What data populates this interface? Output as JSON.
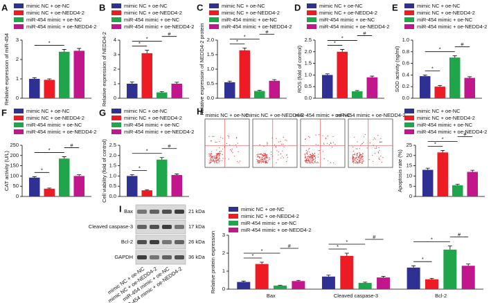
{
  "chart_data": [
    {
      "type": "bar",
      "panel": "A",
      "y_label": "Relative expression of miR-454",
      "ylim": [
        0,
        3
      ],
      "yticks": [
        0,
        1,
        2,
        3
      ],
      "series": [
        {
          "name": "mimic NC + oe-NC",
          "color": "#2e3192",
          "values": [
            1.0
          ],
          "errors": [
            0.06
          ]
        },
        {
          "name": "mimic NC + oe-NEDD4-2",
          "color": "#ed1c24",
          "values": [
            0.95
          ],
          "errors": [
            0.05
          ]
        },
        {
          "name": "miR-454 mimic + oe-NC",
          "color": "#1fa64a",
          "values": [
            2.4
          ],
          "errors": [
            0.12
          ]
        },
        {
          "name": "miR-454 mimic + oe-NEDD4-2",
          "color": "#c2178c",
          "values": [
            2.45
          ],
          "errors": [
            0.12
          ]
        }
      ],
      "comparisons": [
        {
          "label": "*",
          "between": [
            0,
            2
          ]
        }
      ]
    },
    {
      "type": "bar",
      "panel": "B",
      "y_label": "Relative expression of NEDD4-2",
      "ylim": [
        0,
        4
      ],
      "yticks": [
        0,
        1,
        2,
        3,
        4
      ],
      "series": [
        {
          "name": "mimic NC + oe-NC",
          "color": "#2e3192",
          "values": [
            1.0
          ],
          "errors": [
            0.12
          ]
        },
        {
          "name": "mimic NC + oe-NEDD4-2",
          "color": "#ed1c24",
          "values": [
            3.1
          ],
          "errors": [
            0.2
          ]
        },
        {
          "name": "miR-454 mimic + oe-NC",
          "color": "#1fa64a",
          "values": [
            0.4
          ],
          "errors": [
            0.06
          ]
        },
        {
          "name": "miR-454 mimic + oe-NEDD4-2",
          "color": "#c2178c",
          "values": [
            1.0
          ],
          "errors": [
            0.1
          ]
        }
      ],
      "comparisons": [
        {
          "label": "*",
          "between": [
            0,
            1
          ]
        },
        {
          "label": "*",
          "between": [
            0,
            2
          ]
        },
        {
          "label": "#",
          "between": [
            2,
            3
          ]
        }
      ]
    },
    {
      "type": "bar",
      "panel": "C",
      "y_label": "Relative expression of NEDD4-2 protein",
      "ylim": [
        0,
        2
      ],
      "yticks": [
        {
          "value": 0,
          "label": "0.0"
        },
        {
          "value": 0.5,
          "label": "0.5"
        },
        {
          "value": 1,
          "label": "1.0"
        },
        {
          "value": 1.5,
          "label": "1.5"
        },
        {
          "value": 2,
          "label": "2.0"
        }
      ],
      "series": [
        {
          "name": "mimic NC + oe-NC",
          "color": "#2e3192",
          "values": [
            0.55
          ],
          "errors": [
            0.04
          ]
        },
        {
          "name": "mimic NC + oe-NEDD4-2",
          "color": "#ed1c24",
          "values": [
            1.65
          ],
          "errors": [
            0.08
          ]
        },
        {
          "name": "miR-454 mimic + oe-NC",
          "color": "#1fa64a",
          "values": [
            0.25
          ],
          "errors": [
            0.02
          ]
        },
        {
          "name": "miR-454 mimic + oe-NEDD4-2",
          "color": "#c2178c",
          "values": [
            0.6
          ],
          "errors": [
            0.04
          ]
        }
      ],
      "comparisons": [
        {
          "label": "*",
          "between": [
            0,
            1
          ]
        },
        {
          "label": "*",
          "between": [
            0,
            2
          ]
        },
        {
          "label": "#",
          "between": [
            2,
            3
          ]
        }
      ]
    },
    {
      "type": "bar",
      "panel": "D",
      "y_label": "ROS (fold of control)",
      "ylim": [
        0,
        2.5
      ],
      "yticks": [
        {
          "value": 0,
          "label": "0.0"
        },
        {
          "value": 0.5,
          "label": "0.5"
        },
        {
          "value": 1,
          "label": "1.0"
        },
        {
          "value": 1.5,
          "label": "1.5"
        },
        {
          "value": 2,
          "label": "2.0"
        },
        {
          "value": 2.5,
          "label": "2.5"
        }
      ],
      "series": [
        {
          "name": "mimic NC + oe-NC",
          "color": "#2e3192",
          "values": [
            1.0
          ],
          "errors": [
            0.05
          ]
        },
        {
          "name": "mimic NC + oe-NEDD4-2",
          "color": "#ed1c24",
          "values": [
            2.0
          ],
          "errors": [
            0.1
          ]
        },
        {
          "name": "miR-454 mimic + oe-NC",
          "color": "#1fa64a",
          "values": [
            0.3
          ],
          "errors": [
            0.03
          ]
        },
        {
          "name": "miR-454 mimic + oe-NEDD4-2",
          "color": "#c2178c",
          "values": [
            0.9
          ],
          "errors": [
            0.05
          ]
        }
      ],
      "comparisons": [
        {
          "label": "*",
          "between": [
            0,
            1
          ]
        },
        {
          "label": "*",
          "between": [
            0,
            2
          ]
        },
        {
          "label": "#",
          "between": [
            2,
            3
          ]
        }
      ]
    },
    {
      "type": "bar",
      "panel": "E",
      "y_label": "SOD activity (ng/ml)",
      "ylim": [
        0,
        1
      ],
      "yticks": [
        {
          "value": 0,
          "label": "0.0"
        },
        {
          "value": 0.2,
          "label": "0.2"
        },
        {
          "value": 0.4,
          "label": "0.4"
        },
        {
          "value": 0.6,
          "label": "0.6"
        },
        {
          "value": 0.8,
          "label": "0.8"
        },
        {
          "value": 1,
          "label": "1.0"
        }
      ],
      "series": [
        {
          "name": "mimic NC + oe-NC",
          "color": "#2e3192",
          "values": [
            0.38
          ],
          "errors": [
            0.02
          ]
        },
        {
          "name": "mimic NC + oe-NEDD4-2",
          "color": "#ed1c24",
          "values": [
            0.2
          ],
          "errors": [
            0.02
          ]
        },
        {
          "name": "miR-454 mimic + oe-NC",
          "color": "#1fa64a",
          "values": [
            0.7
          ],
          "errors": [
            0.03
          ]
        },
        {
          "name": "miR-454 mimic + oe-NEDD4-2",
          "color": "#c2178c",
          "values": [
            0.35
          ],
          "errors": [
            0.02
          ]
        }
      ],
      "comparisons": [
        {
          "label": "*",
          "between": [
            0,
            1
          ]
        },
        {
          "label": "*",
          "between": [
            0,
            2
          ]
        },
        {
          "label": "#",
          "between": [
            2,
            3
          ]
        }
      ]
    },
    {
      "type": "bar",
      "panel": "F",
      "y_label": "CAT activity (U/L)",
      "ylim": [
        0,
        250
      ],
      "yticks": [
        0,
        50,
        100,
        150,
        200,
        250
      ],
      "series": [
        {
          "name": "mimic NC + oe-NC",
          "color": "#2e3192",
          "values": [
            92
          ],
          "errors": [
            5
          ]
        },
        {
          "name": "mimic NC + oe-NEDD4-2",
          "color": "#ed1c24",
          "values": [
            38
          ],
          "errors": [
            3
          ]
        },
        {
          "name": "miR-454 mimic + oe-NC",
          "color": "#1fa64a",
          "values": [
            185
          ],
          "errors": [
            9
          ]
        },
        {
          "name": "miR-454 mimic + oe-NEDD4-2",
          "color": "#c2178c",
          "values": [
            100
          ],
          "errors": [
            6
          ]
        }
      ],
      "comparisons": [
        {
          "label": "*",
          "between": [
            0,
            1
          ]
        },
        {
          "label": "*",
          "between": [
            0,
            2
          ]
        },
        {
          "label": "#",
          "between": [
            2,
            3
          ]
        }
      ]
    },
    {
      "type": "bar",
      "panel": "G",
      "y_label": "Cell viability (fold of control)",
      "ylim": [
        0,
        2.5
      ],
      "yticks": [
        {
          "value": 0,
          "label": "0.0"
        },
        {
          "value": 0.5,
          "label": "0.5"
        },
        {
          "value": 1,
          "label": "1.0"
        },
        {
          "value": 1.5,
          "label": "1.5"
        },
        {
          "value": 2,
          "label": "2.0"
        },
        {
          "value": 2.5,
          "label": "2.5"
        }
      ],
      "series": [
        {
          "name": "mimic NC + oe-NC",
          "color": "#2e3192",
          "values": [
            1.0
          ],
          "errors": [
            0.06
          ]
        },
        {
          "name": "mimic NC + oe-NEDD4-2",
          "color": "#ed1c24",
          "values": [
            0.3
          ],
          "errors": [
            0.03
          ]
        },
        {
          "name": "miR-454 mimic + oe-NC",
          "color": "#1fa64a",
          "values": [
            1.8
          ],
          "errors": [
            0.1
          ]
        },
        {
          "name": "miR-454 mimic + oe-NEDD4-2",
          "color": "#c2178c",
          "values": [
            1.05
          ],
          "errors": [
            0.05
          ]
        }
      ],
      "comparisons": [
        {
          "label": "*",
          "between": [
            0,
            1
          ]
        },
        {
          "label": "*",
          "between": [
            0,
            2
          ]
        },
        {
          "label": "#",
          "between": [
            2,
            3
          ]
        }
      ]
    },
    {
      "type": "bar",
      "y_label": "Apoptosis rate (%)",
      "ylim": [
        0,
        25
      ],
      "yticks": [
        0,
        5,
        10,
        15,
        20,
        25
      ],
      "series": [
        {
          "name": "mimic NC + oe-NC",
          "color": "#2e3192",
          "values": [
            13
          ],
          "errors": [
            0.8
          ]
        },
        {
          "name": "mimic NC + oe-NEDD4-2",
          "color": "#ed1c24",
          "values": [
            21.5
          ],
          "errors": [
            1
          ]
        },
        {
          "name": "miR-454 mimic + oe-NC",
          "color": "#1fa64a",
          "values": [
            5.5
          ],
          "errors": [
            0.5
          ]
        },
        {
          "name": "miR-454 mimic + oe-NEDD4-2",
          "color": "#c2178c",
          "values": [
            12
          ],
          "errors": [
            0.8
          ]
        }
      ],
      "comparisons": [
        {
          "label": "*",
          "between": [
            0,
            1
          ]
        },
        {
          "label": "*",
          "between": [
            0,
            2
          ]
        },
        {
          "label": "#",
          "between": [
            2,
            3
          ]
        }
      ]
    },
    {
      "type": "bar",
      "y_label": "Relative protein expression",
      "ylim": [
        0,
        3
      ],
      "yticks": [
        0,
        1,
        2,
        3
      ],
      "categories": [
        "Bax",
        "Cleaved caspase-3",
        "Bcl-2"
      ],
      "series": [
        {
          "name": "mimic NC + oe-NC",
          "color": "#2e3192",
          "values": [
            0.4,
            0.7,
            1.2
          ],
          "errors": [
            0.05,
            0.08,
            0.1
          ]
        },
        {
          "name": "mimic NC + oe-NEDD4-2",
          "color": "#ed1c24",
          "values": [
            1.4,
            1.85,
            0.55
          ],
          "errors": [
            0.1,
            0.15,
            0.05
          ]
        },
        {
          "name": "miR-454 mimic + oe-NC",
          "color": "#1fa64a",
          "values": [
            0.2,
            0.35,
            2.2
          ],
          "errors": [
            0.02,
            0.04,
            0.2
          ]
        },
        {
          "name": "miR-454 mimic + oe-NEDD4-2",
          "color": "#c2178c",
          "values": [
            0.45,
            0.65,
            1.3
          ],
          "errors": [
            0.04,
            0.06,
            0.1
          ]
        }
      ],
      "comparisons": [
        {
          "group": 0,
          "label": "*",
          "between": [
            0,
            1
          ]
        },
        {
          "group": 0,
          "label": "*",
          "between": [
            0,
            2
          ]
        },
        {
          "group": 0,
          "label": "#",
          "between": [
            2,
            3
          ]
        },
        {
          "group": 1,
          "label": "*",
          "between": [
            0,
            1
          ]
        },
        {
          "group": 1,
          "label": "*",
          "between": [
            0,
            2
          ]
        },
        {
          "group": 1,
          "label": "#",
          "between": [
            2,
            3
          ]
        },
        {
          "group": 2,
          "label": "*",
          "between": [
            0,
            1
          ]
        },
        {
          "group": 2,
          "label": "*",
          "between": [
            0,
            2
          ]
        },
        {
          "group": 2,
          "label": "#",
          "between": [
            2,
            3
          ]
        }
      ]
    }
  ],
  "flow": {
    "panel": "H",
    "plots": [
      {
        "title": "mimic NC + oe-NC"
      },
      {
        "title": "mimic NC + oe-NEDD4-2"
      },
      {
        "title": "miR-454 mimic + oe-NC"
      },
      {
        "title": "miR-454 mimic + oe-NEDD4-2"
      }
    ]
  },
  "blot": {
    "panel": "I",
    "rows": [
      {
        "label": "Bax",
        "size": "21 kDa"
      },
      {
        "label": "Cleaved caspase-3",
        "size": "17 kDa"
      },
      {
        "label": "Bcl-2",
        "size": "26 kDa"
      },
      {
        "label": "GAPDH",
        "size": "36 kDa"
      }
    ],
    "lanes": [
      "mimic NC + oe-NC",
      "mimic NC + oe-NEDD4-2",
      "miR-454 mimic + oe-NC",
      "miR-454 mimic + oe-NEDD4-2"
    ]
  }
}
